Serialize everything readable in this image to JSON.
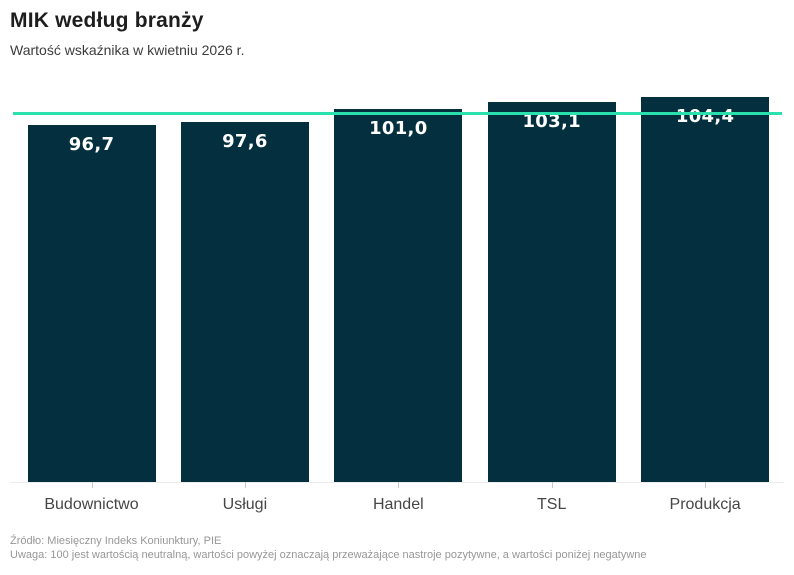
{
  "header": {
    "title": "MIK według branży",
    "subtitle": "Wartość wskaźnika w kwietniu 2026 r."
  },
  "chart_data": {
    "type": "bar",
    "title": "MIK według branży",
    "subtitle": "Wartość wskaźnika w kwietniu 2026 r.",
    "categories": [
      "Budownictwo",
      "Usługi",
      "Handel",
      "TSL",
      "Produkcja"
    ],
    "values": [
      96.7,
      97.6,
      101.0,
      103.1,
      104.4
    ],
    "value_labels": [
      "96,7",
      "97,6",
      "101,0",
      "103,1",
      "104,4"
    ],
    "reference_line": {
      "value": 100
    },
    "ylim": [
      0,
      105
    ],
    "grid": false,
    "legend": false,
    "bar_color": "#042f3e",
    "reference_line_color": "#2ae0ac",
    "value_label_color": "#ffffff"
  },
  "footer": {
    "source": "Źródło: Miesięczny Indeks Koniunktury, PIE",
    "note": "Uwaga: 100 jest wartością neutralną, wartości powyżej oznaczają przeważające nastroje pozytywne, a wartości poniżej negatywne"
  }
}
